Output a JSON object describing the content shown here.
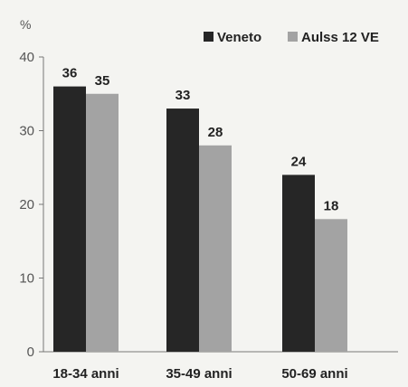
{
  "chart_data": {
    "type": "bar",
    "categories": [
      "18-34 anni",
      "35-49 anni",
      "50-69 anni"
    ],
    "series": [
      {
        "name": "Veneto",
        "values": [
          36,
          33,
          24
        ],
        "color": "#262626"
      },
      {
        "name": "Aulss 12 VE",
        "values": [
          35,
          28,
          18
        ],
        "color": "#a3a3a3"
      }
    ],
    "title": "",
    "ylabel": "%",
    "xlabel": "",
    "ylim": [
      0,
      40
    ],
    "yticks": [
      0,
      10,
      20,
      30,
      40
    ],
    "grid": false,
    "legend_position": "top-right",
    "data_labels": true
  }
}
